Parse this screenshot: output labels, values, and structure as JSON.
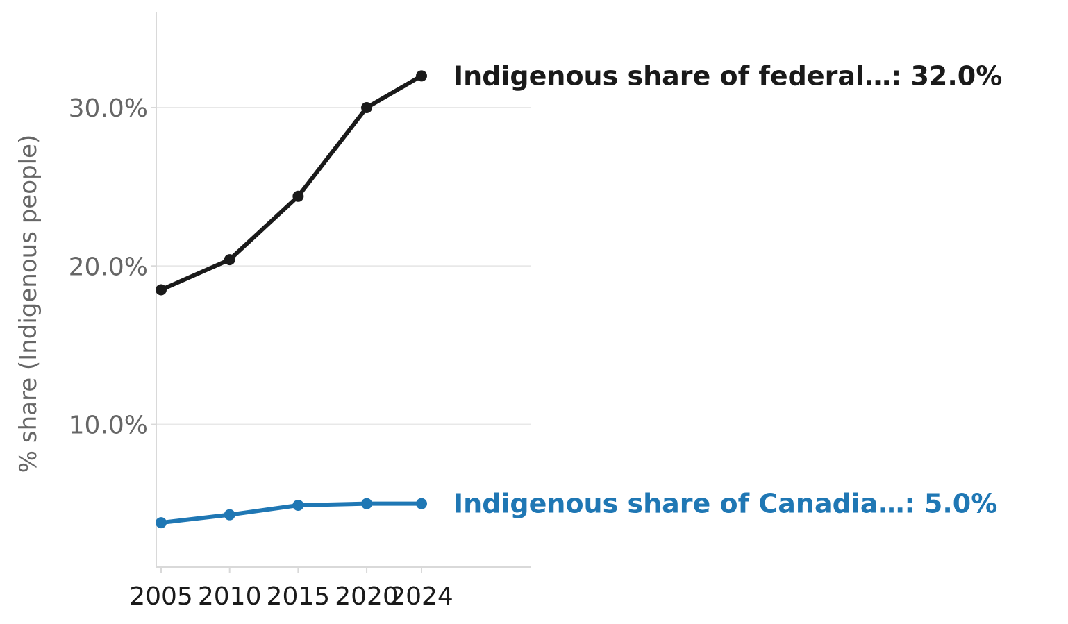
{
  "chart_data": {
    "type": "line",
    "title": "",
    "xlabel": "",
    "ylabel": "% share (Indigenous people)",
    "x": [
      2005,
      2010,
      2015,
      2020,
      2024
    ],
    "x_ticks": [
      "2005",
      "2010",
      "2015",
      "2020",
      "2024"
    ],
    "xlim": [
      2005,
      2032
    ],
    "ylim": [
      1.0,
      36.0
    ],
    "y_ticks": [
      10.0,
      20.0,
      30.0
    ],
    "y_tick_labels": [
      "10.0%",
      "20.0%",
      "30.0%"
    ],
    "grid": "horizontal",
    "legend": "none (direct end labels)",
    "series": [
      {
        "name": "Indigenous share of federal…",
        "values": [
          18.5,
          20.4,
          24.4,
          30.0,
          32.0
        ],
        "color": "#1a1a1a",
        "end_label": "Indigenous share of federal…: 32.0%"
      },
      {
        "name": "Indigenous share of Canadia…",
        "values": [
          3.8,
          4.3,
          4.9,
          5.0,
          5.0
        ],
        "color": "#1f77b4",
        "end_label": "Indigenous share of Canadia…: 5.0%"
      }
    ]
  }
}
